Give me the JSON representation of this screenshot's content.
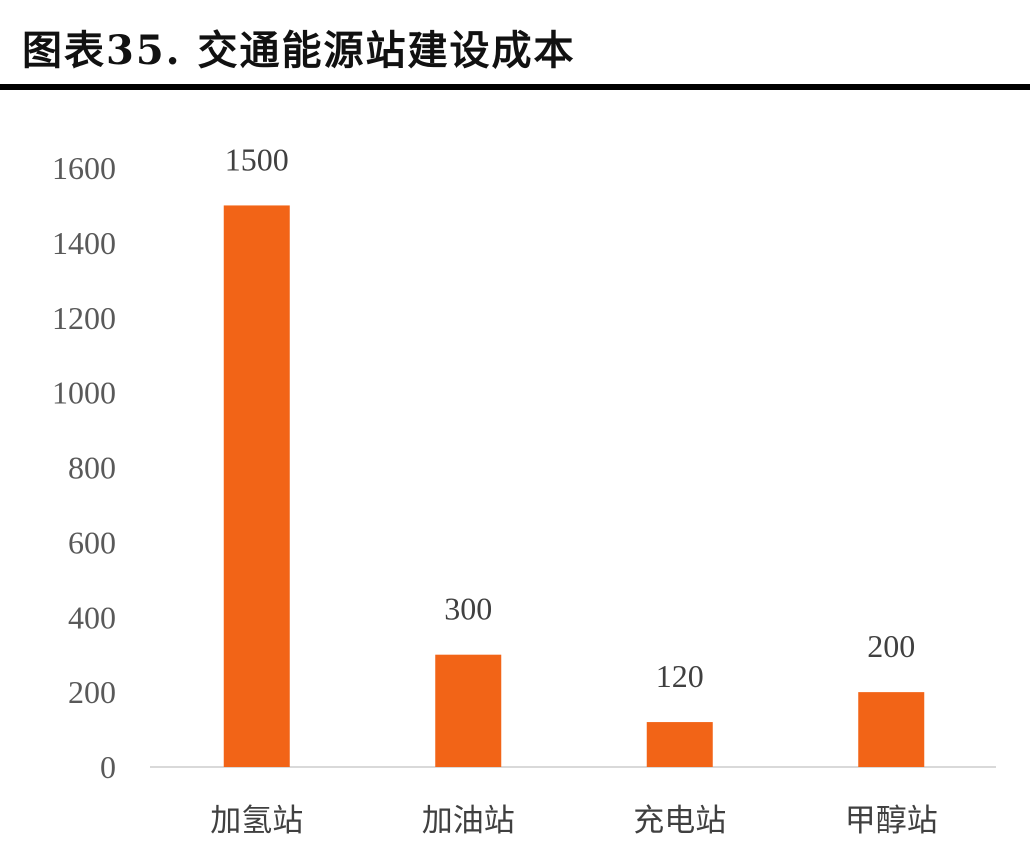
{
  "header": {
    "title": "图表35.  交通能源站建设成本"
  },
  "chart_data": {
    "type": "bar",
    "title": "图表35.  交通能源站建设成本",
    "categories": [
      "加氢站",
      "加油站",
      "充电站",
      "甲醇站"
    ],
    "values": [
      1500,
      300,
      120,
      200
    ],
    "data_labels": [
      "1500",
      "300",
      "120",
      "200"
    ],
    "yticks": [
      "0",
      "200",
      "400",
      "600",
      "800",
      "1000",
      "1200",
      "1400",
      "1600"
    ],
    "ylim": [
      0,
      1600
    ],
    "xlabel": "",
    "ylabel": "",
    "grid": false,
    "legend": "none",
    "bar_color": "#F26417",
    "axis_color": "#D9D9D9"
  }
}
